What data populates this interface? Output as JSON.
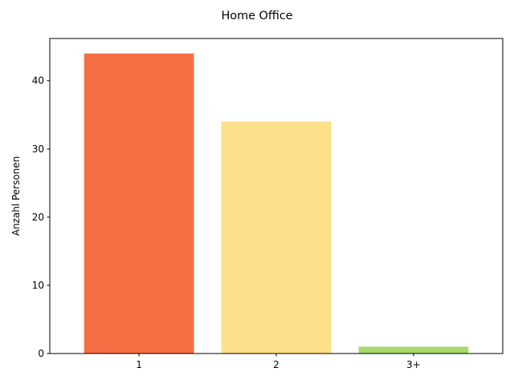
{
  "chart_data": {
    "type": "bar",
    "title": "Home Office",
    "xlabel": "",
    "ylabel": "Anzahl Personen",
    "categories": [
      "1",
      "2",
      "3+"
    ],
    "values": [
      44,
      34,
      1
    ],
    "colors": [
      "#f46d43",
      "#fee08b",
      "#a6d96a"
    ],
    "ylim": [
      0,
      46.2
    ],
    "yticks": [
      0,
      10,
      20,
      30,
      40
    ],
    "grid": false,
    "legend": "none"
  }
}
